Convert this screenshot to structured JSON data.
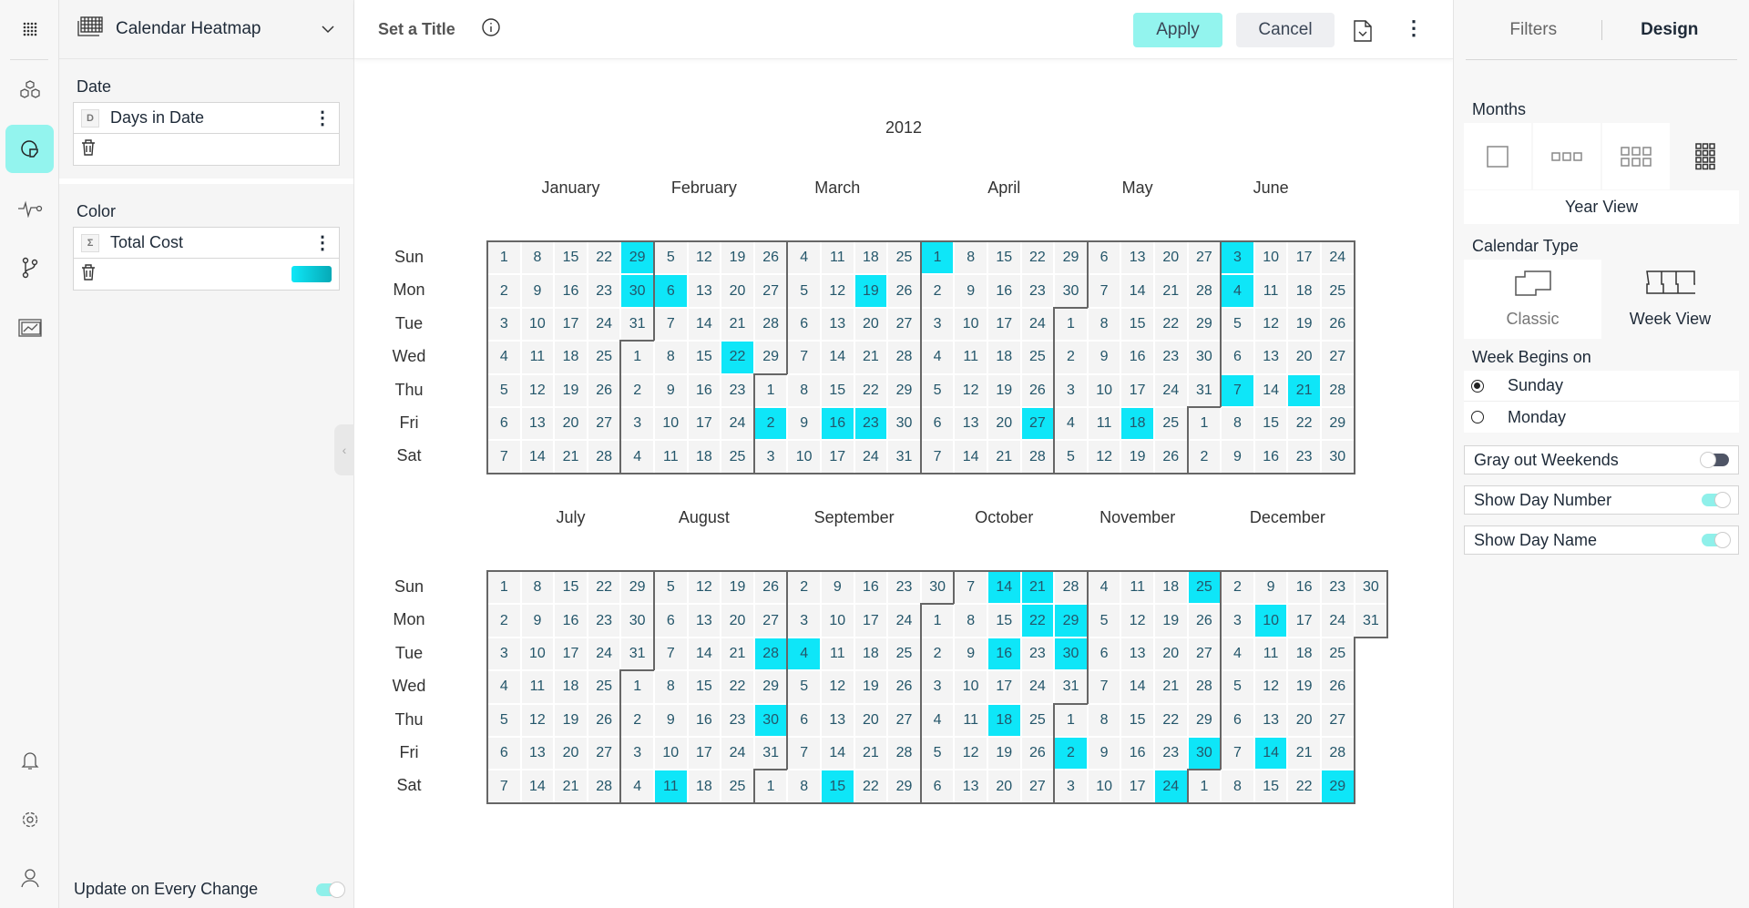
{
  "left_panel": {
    "chart_type": "Calendar Heatmap",
    "sections": [
      {
        "label": "Date",
        "field": "Days in Date",
        "badge": "D"
      },
      {
        "label": "Color",
        "field": "Total Cost",
        "badge": "Σ"
      }
    ],
    "update_label": "Update on Every Change",
    "update_on": true
  },
  "toolbar": {
    "title": "Set a Title",
    "apply": "Apply",
    "cancel": "Cancel"
  },
  "colors": {
    "highlight": "#0ee6f8",
    "cell": "#f4f4f4",
    "accent": "#93f4ee"
  },
  "chart_data": {
    "type": "heatmap",
    "title": "2012",
    "year": 2012,
    "week_start": "Sunday",
    "day_names": [
      "Sun",
      "Mon",
      "Tue",
      "Wed",
      "Thu",
      "Fri",
      "Sat"
    ],
    "months": [
      "January",
      "February",
      "March",
      "April",
      "May",
      "June",
      "July",
      "August",
      "September",
      "October",
      "November",
      "December"
    ],
    "highlighted_dates": [
      "2012-01-29",
      "2012-01-30",
      "2012-02-06",
      "2012-02-22",
      "2012-03-02",
      "2012-03-16",
      "2012-03-19",
      "2012-03-23",
      "2012-04-01",
      "2012-04-27",
      "2012-05-18",
      "2012-06-03",
      "2012-06-04",
      "2012-06-07",
      "2012-06-21",
      "2012-08-11",
      "2012-08-28",
      "2012-08-30",
      "2012-09-04",
      "2012-09-15",
      "2012-10-14",
      "2012-10-16",
      "2012-10-18",
      "2012-10-21",
      "2012-10-22",
      "2012-10-29",
      "2012-10-30",
      "2012-11-02",
      "2012-11-24",
      "2012-11-25",
      "2012-11-30",
      "2012-12-10",
      "2012-12-14",
      "2012-12-29"
    ]
  },
  "right_panel": {
    "tabs": [
      "Filters",
      "Design"
    ],
    "active_tab": "Design",
    "months_label": "Months",
    "months_selected": "Year View",
    "calendar_type_label": "Calendar Type",
    "calendar_types": [
      "Classic",
      "Week View"
    ],
    "week_begins_label": "Week Begins on",
    "week_options": [
      "Sunday",
      "Monday"
    ],
    "week_selected": "Sunday",
    "toggles": [
      {
        "label": "Gray out Weekends",
        "on": false
      },
      {
        "label": "Show Day Number",
        "on": true
      },
      {
        "label": "Show Day Name",
        "on": true
      }
    ]
  }
}
